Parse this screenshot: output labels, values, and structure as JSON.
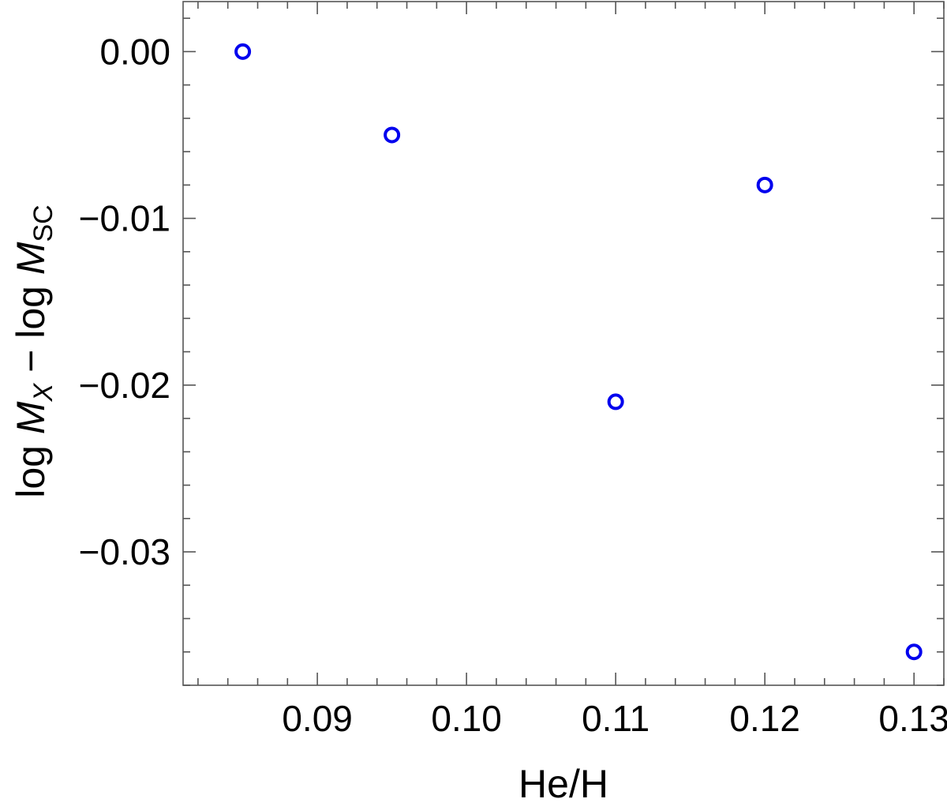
{
  "chart_data": {
    "type": "scatter",
    "xlabel": "He/H",
    "ylabel_parts": {
      "a": "log ",
      "b": "M",
      "c": "X",
      "d": " − log ",
      "e": "M",
      "f": "SC"
    },
    "xlim": [
      0.081,
      0.132
    ],
    "ylim": [
      -0.038,
      0.003
    ],
    "x_ticks": [
      0.09,
      0.1,
      0.11,
      0.12,
      0.13
    ],
    "x_tick_labels": [
      "0.09",
      "0.10",
      "0.11",
      "0.12",
      "0.13"
    ],
    "y_ticks": [
      0.0,
      -0.01,
      -0.02,
      -0.03
    ],
    "y_tick_labels": [
      "0.00",
      "−0.01",
      "−0.02",
      "−0.03"
    ],
    "x_minor_step": 0.002,
    "y_minor_step": 0.002,
    "grid": false,
    "marker": "open-circle",
    "color": "#0000ee",
    "series": [
      {
        "x": [
          0.085,
          0.095,
          0.11,
          0.12,
          0.13
        ],
        "y": [
          0.0,
          -0.005,
          -0.021,
          -0.008,
          -0.036
        ]
      }
    ]
  }
}
